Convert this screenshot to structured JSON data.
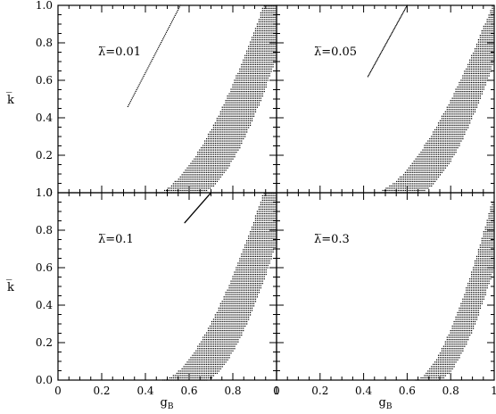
{
  "chart_data": [
    {
      "type": "scatter",
      "panel": "top-left",
      "label": "λ̅=0.01",
      "xlim": [
        0,
        1
      ],
      "ylim": [
        0,
        1
      ],
      "xticks": [
        "0",
        "0.2",
        "0.4",
        "0.6",
        "0.8",
        "1"
      ],
      "yticks": [
        "0",
        "0.2",
        "0.4",
        "0.6",
        "0.8",
        "1.0"
      ],
      "show_xticklabels": false,
      "show_yticklabels": true,
      "band": {
        "left_x_at_y0": 0.45,
        "left_x_at_y1": 0.94,
        "right_x_at_y0": 0.66,
        "right_x_at_y1": 1.0,
        "right_y_at_xmax": 0.72
      },
      "line": {
        "from": [
          0.32,
          0.46
        ],
        "to": [
          0.56,
          1.0
        ]
      }
    },
    {
      "type": "scatter",
      "panel": "top-right",
      "label": "λ̅=0.05",
      "xlim": [
        0,
        1
      ],
      "ylim": [
        0,
        1
      ],
      "xticks": [
        "0",
        "0.2",
        "0.4",
        "0.6",
        "0.8",
        "1"
      ],
      "yticks": [
        "0",
        "0.2",
        "0.4",
        "0.6",
        "0.8",
        "1.0"
      ],
      "show_xticklabels": false,
      "show_yticklabels": false,
      "band": {
        "left_x_at_y0": 0.45,
        "left_x_at_y1": 0.99,
        "right_x_at_y0": 0.66,
        "right_x_at_y1": 1.0,
        "right_y_at_xmax": 0.7
      },
      "line": {
        "from": [
          0.42,
          0.62
        ],
        "to": [
          0.6,
          1.0
        ]
      }
    },
    {
      "type": "scatter",
      "panel": "bottom-left",
      "label": "λ̅=0.1",
      "xlim": [
        0,
        1
      ],
      "ylim": [
        0,
        1
      ],
      "xticks": [
        "0",
        "0.2",
        "0.4",
        "0.6",
        "0.8",
        "1"
      ],
      "yticks": [
        "0.0",
        "0.2",
        "0.4",
        "0.6",
        "0.8",
        "1.0"
      ],
      "show_xticklabels": true,
      "show_yticklabels": true,
      "band": {
        "left_x_at_y0": 0.48,
        "left_x_at_y1": 0.94,
        "right_x_at_y0": 0.68,
        "right_x_at_y1": 1.0,
        "right_y_at_xmax": 0.73
      },
      "line": {
        "from": [
          0.58,
          0.84
        ],
        "to": [
          0.7,
          1.0
        ]
      }
    },
    {
      "type": "scatter",
      "panel": "bottom-right",
      "label": "λ̅=0.3",
      "xlim": [
        0,
        1
      ],
      "ylim": [
        0,
        1
      ],
      "xticks": [
        "0",
        "0.2",
        "0.4",
        "0.6",
        "0.8",
        "1"
      ],
      "yticks": [
        "0.0",
        "0.2",
        "0.4",
        "0.6",
        "0.8",
        "1.0"
      ],
      "show_xticklabels": true,
      "show_yticklabels": false,
      "band": {
        "left_x_at_y0": 0.64,
        "left_x_at_y1": 1.0,
        "left_y_at_xmax": 0.95,
        "right_x_at_y0": 0.75,
        "right_x_at_y1": 1.0,
        "right_y_at_xmax": 0.6
      },
      "line": null
    }
  ],
  "xlabel": {
    "main": "g",
    "sub": "B"
  },
  "ylabel": "k̅",
  "colors": {
    "points": "#000000",
    "frame": "#000000"
  }
}
